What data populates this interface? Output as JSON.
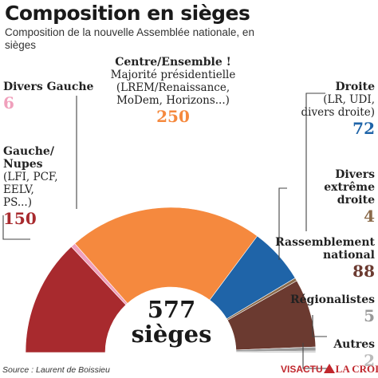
{
  "header": {
    "title": "Composition en sièges",
    "subtitle": "Composition de la nouvelle Assemblée nationale, en sièges"
  },
  "total": {
    "line1": "577",
    "line2": "sièges"
  },
  "source": "Source : Laurent de Boissieu",
  "logo": {
    "part1": "VISACTU",
    "part2": "LA CROIX"
  },
  "chart_data": {
    "type": "pie",
    "variant": "parliament-half-donut",
    "title": "Composition en sièges",
    "subtitle": "Composition de la nouvelle Assemblée nationale, en sièges",
    "total": 577,
    "groups": [
      {
        "name": "Gauche/ Nupes",
        "desc": "(LFI, PCF, EELV, PS...)",
        "value": 150,
        "color": "#a82a2e"
      },
      {
        "name": "Divers Gauche",
        "desc": "",
        "value": 6,
        "color": "#f0a0bc"
      },
      {
        "name": "Centre/Ensemble !",
        "desc": "Majorité présidentielle (LREM/Renaissance, MoDem, Horizons...)",
        "value": 250,
        "color": "#f5893e"
      },
      {
        "name": "Droite",
        "desc": "(LR, UDI, divers droite)",
        "value": 72,
        "color": "#1f64a8"
      },
      {
        "name": "Divers extrême droite",
        "desc": "",
        "value": 4,
        "color": "#8a6a4a"
      },
      {
        "name": "Rassemblement national",
        "desc": "",
        "value": 88,
        "color": "#6b3a30"
      },
      {
        "name": "Régionalistes",
        "desc": "",
        "value": 5,
        "color": "#999999"
      },
      {
        "name": "Autres",
        "desc": "",
        "value": 2,
        "color": "#bbbbbb"
      }
    ]
  }
}
